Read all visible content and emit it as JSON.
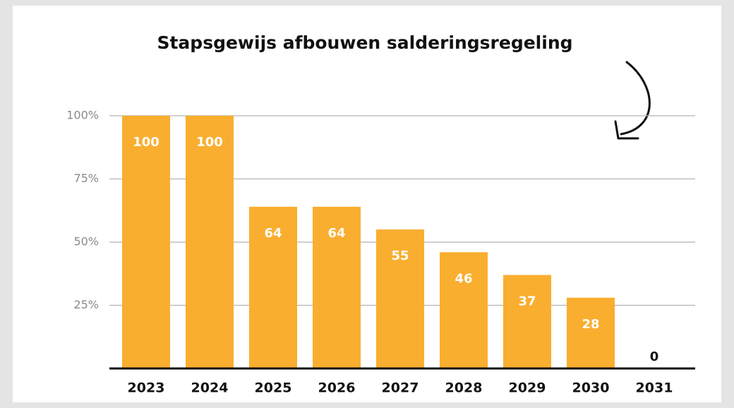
{
  "chart_data": {
    "type": "bar",
    "title": "Stapsgewijs afbouwen salderingsregeling",
    "categories": [
      "2023",
      "2024",
      "2025",
      "2026",
      "2027",
      "2028",
      "2029",
      "2030",
      "2031"
    ],
    "values": [
      100,
      100,
      64,
      64,
      55,
      46,
      37,
      28,
      0
    ],
    "color": "#f9ae2f",
    "ylim": [
      0,
      100
    ],
    "yticks": [
      {
        "value": 25,
        "label": "25%"
      },
      {
        "value": 50,
        "label": "50%"
      },
      {
        "value": 75,
        "label": "75%"
      },
      {
        "value": 100,
        "label": "100%"
      }
    ],
    "grid": true
  }
}
